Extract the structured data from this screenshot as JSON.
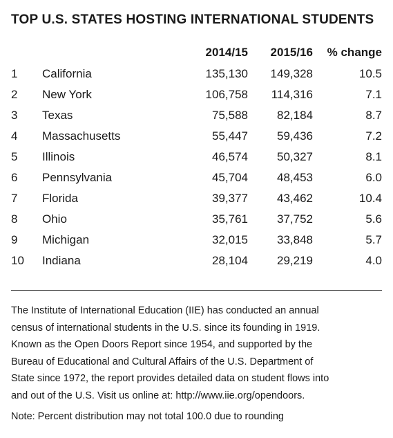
{
  "title": "TOP U.S. STATES HOSTING INTERNATIONAL STUDENTS",
  "table": {
    "headers": [
      "2014/15",
      "2015/16",
      "% change"
    ],
    "rows": [
      {
        "rank": "1",
        "state": "California",
        "y2014": "135,130",
        "y2015": "149,328",
        "change": "10.5"
      },
      {
        "rank": "2",
        "state": "New York",
        "y2014": "106,758",
        "y2015": "114,316",
        "change": "7.1"
      },
      {
        "rank": "3",
        "state": "Texas",
        "y2014": "75,588",
        "y2015": "82,184",
        "change": "8.7"
      },
      {
        "rank": "4",
        "state": "Massachusetts",
        "y2014": "55,447",
        "y2015": "59,436",
        "change": "7.2"
      },
      {
        "rank": "5",
        "state": "Illinois",
        "y2014": "46,574",
        "y2015": "50,327",
        "change": "8.1"
      },
      {
        "rank": "6",
        "state": "Pennsylvania",
        "y2014": "45,704",
        "y2015": "48,453",
        "change": "6.0"
      },
      {
        "rank": "7",
        "state": "Florida",
        "y2014": "39,377",
        "y2015": "43,462",
        "change": "10.4"
      },
      {
        "rank": "8",
        "state": "Ohio",
        "y2014": "35,761",
        "y2015": "37,752",
        "change": "5.6"
      },
      {
        "rank": "9",
        "state": "Michigan",
        "y2014": "32,015",
        "y2015": "33,848",
        "change": "5.7"
      },
      {
        "rank": "10",
        "state": "Indiana",
        "y2014": "28,104",
        "y2015": "29,219",
        "change": "4.0"
      }
    ]
  },
  "description_lines": [
    "The Institute of International Education (IIE) has conducted an annual",
    "census of international students in the U.S. since its founding in 1919.",
    "Known as the Open Doors Report since 1954, and supported by the",
    "Bureau of Educational and Cultural Affairs of the U.S. Department of",
    "State since 1972, the report provides detailed data on student flows into",
    "and out of the U.S. Visit us online at: http://www.iie.org/opendoors."
  ],
  "note": "Note: Percent distribution may not total 100.0 due to rounding"
}
